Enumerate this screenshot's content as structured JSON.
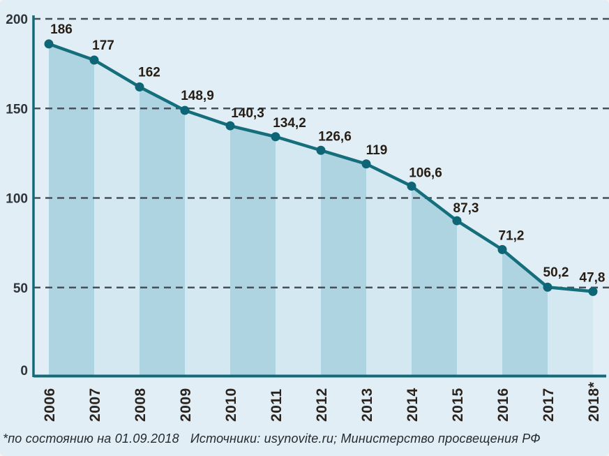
{
  "chart_data": {
    "type": "line",
    "title": "",
    "categories": [
      "2006",
      "2007",
      "2008",
      "2009",
      "2010",
      "2011",
      "2012",
      "2013",
      "2014",
      "2015",
      "2016",
      "2017",
      "2018*"
    ],
    "values": [
      186,
      177,
      162,
      148.9,
      140.3,
      134.2,
      126.6,
      119,
      106.6,
      87.3,
      71.2,
      50.2,
      47.8
    ],
    "value_labels": [
      "186",
      "177",
      "162",
      "148,9",
      "140,3",
      "134,2",
      "126,6",
      "119",
      "106,6",
      "87,3",
      "71,2",
      "50,2",
      "47,8"
    ],
    "ylim": [
      0,
      200
    ],
    "yticks": [
      0,
      50,
      100,
      150,
      200
    ],
    "ytick_labels": [
      "0",
      "50",
      "100",
      "150",
      "200"
    ],
    "xlabel": "",
    "ylabel": "",
    "grid": "horizontal-dashed",
    "legend": "none",
    "area_style": "area under line filled with vertical bands alternating per year interval"
  },
  "footnote": {
    "note": "*по состоянию на 01.09.2018",
    "sources": "Источники: usynovite.ru; Министерство просвещения РФ"
  },
  "colors": {
    "background": "#e1eef5",
    "band_dark": "#aed3e1",
    "band_light": "#d4e8f1",
    "line": "#156e7c",
    "marker": "#0e6575",
    "grid": "#45515a",
    "axis": "#136b79",
    "value_label": "#261e15",
    "ytick_label": "#2e3438",
    "xtick_label": "#2b241e",
    "footnote_text": "#242a2e"
  }
}
